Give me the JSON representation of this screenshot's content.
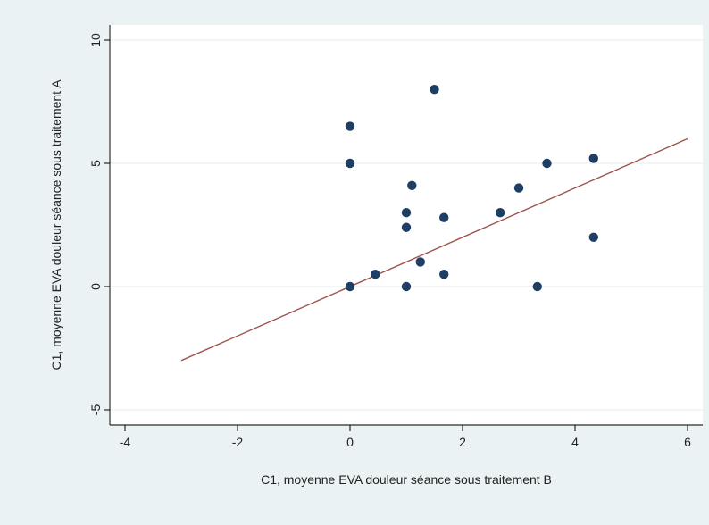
{
  "chart_data": {
    "type": "scatter",
    "xlabel": "C1, moyenne EVA douleur séance sous traitement B",
    "ylabel": "C1, moyenne EVA douleur séance sous traitement A",
    "xlim": [
      -4,
      6
    ],
    "ylim": [
      -5,
      10
    ],
    "xticks": [
      "-4",
      "-2",
      "0",
      "2",
      "4",
      "6"
    ],
    "yticks": [
      "-5",
      "0",
      "5",
      "10"
    ],
    "grid": "horizontal",
    "colors": {
      "points": "#1f3e63",
      "line": "#a0524c",
      "grid": "#e6ebed",
      "plot_bg": "#ffffff",
      "outer_bg": "#eaf2f3"
    },
    "points": [
      {
        "x": 0,
        "y": 6.5
      },
      {
        "x": 0,
        "y": 5
      },
      {
        "x": 0,
        "y": 0
      },
      {
        "x": 0.45,
        "y": 0.5
      },
      {
        "x": 1,
        "y": 3
      },
      {
        "x": 1,
        "y": 2.4
      },
      {
        "x": 1,
        "y": 0
      },
      {
        "x": 1.1,
        "y": 4.1
      },
      {
        "x": 1.25,
        "y": 1
      },
      {
        "x": 1.5,
        "y": 8
      },
      {
        "x": 1.67,
        "y": 2.8
      },
      {
        "x": 1.67,
        "y": 0.5
      },
      {
        "x": 2.67,
        "y": 3
      },
      {
        "x": 3,
        "y": 4
      },
      {
        "x": 3.33,
        "y": 0
      },
      {
        "x": 3.5,
        "y": 5
      },
      {
        "x": 4.33,
        "y": 5.2
      },
      {
        "x": 4.33,
        "y": 2
      }
    ],
    "reference_line": {
      "x": [
        -3,
        6
      ],
      "y": [
        -3,
        6
      ]
    }
  }
}
